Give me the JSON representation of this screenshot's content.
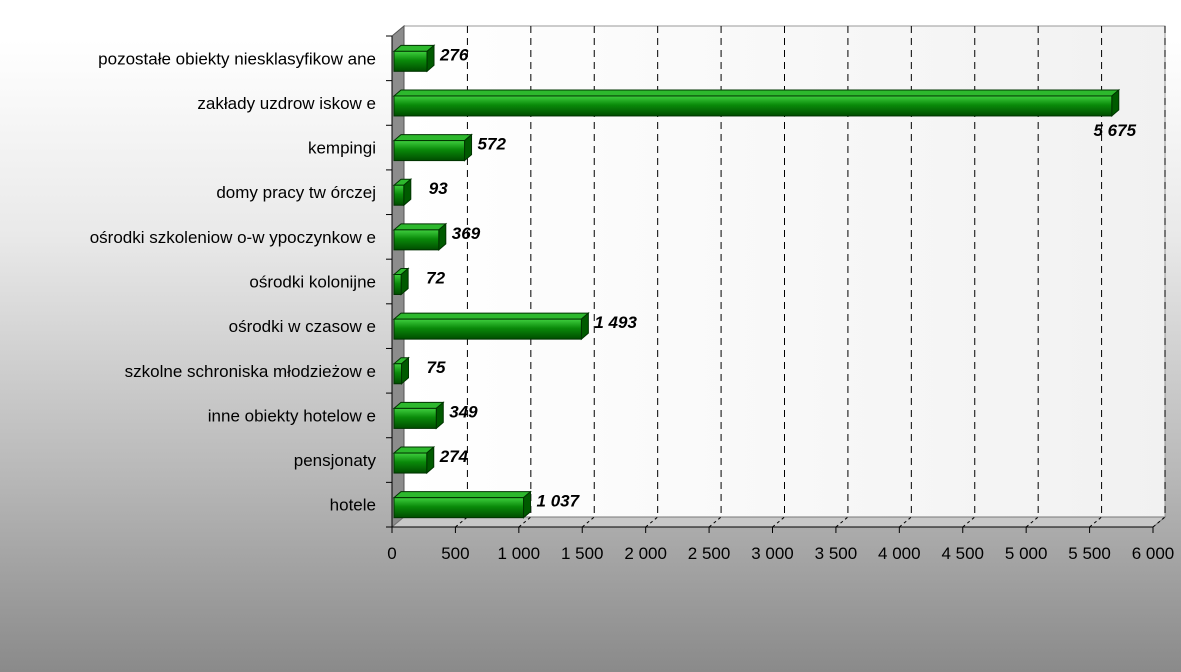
{
  "chart_data": {
    "type": "bar",
    "orientation": "horizontal",
    "categories": [
      "pozostałe obiekty niesklasyfikow ane",
      "zakłady uzdrow iskow e",
      "kempingi",
      "domy pracy tw órczej",
      "ośrodki szkoleniow o-w ypoczynkow e",
      "ośrodki kolonijne",
      "ośrodki w czasow e",
      "szkolne schroniska młodzieżow e",
      "inne obiekty hotelow e",
      "pensjonaty",
      "hotele"
    ],
    "values": [
      276,
      5675,
      572,
      93,
      369,
      72,
      1493,
      75,
      349,
      274,
      1037
    ],
    "data_labels": [
      "276",
      "5 675",
      "572",
      "93",
      "369",
      "72",
      "1 493",
      "75",
      "349",
      "274",
      "1 037"
    ],
    "xlim": [
      0,
      6000
    ],
    "x_ticks": [
      0,
      500,
      1000,
      1500,
      2000,
      2500,
      3000,
      3500,
      4000,
      4500,
      5000,
      5500,
      6000
    ],
    "x_tick_labels": [
      "0",
      "500",
      "1 000",
      "1 500",
      "2 000",
      "2 500",
      "3 000",
      "3 500",
      "4 000",
      "4 500",
      "5 000",
      "5 500",
      "6 000"
    ],
    "grid": "vertical dashed",
    "bar_color": "#008000",
    "title": "",
    "xlabel": "",
    "ylabel": ""
  }
}
